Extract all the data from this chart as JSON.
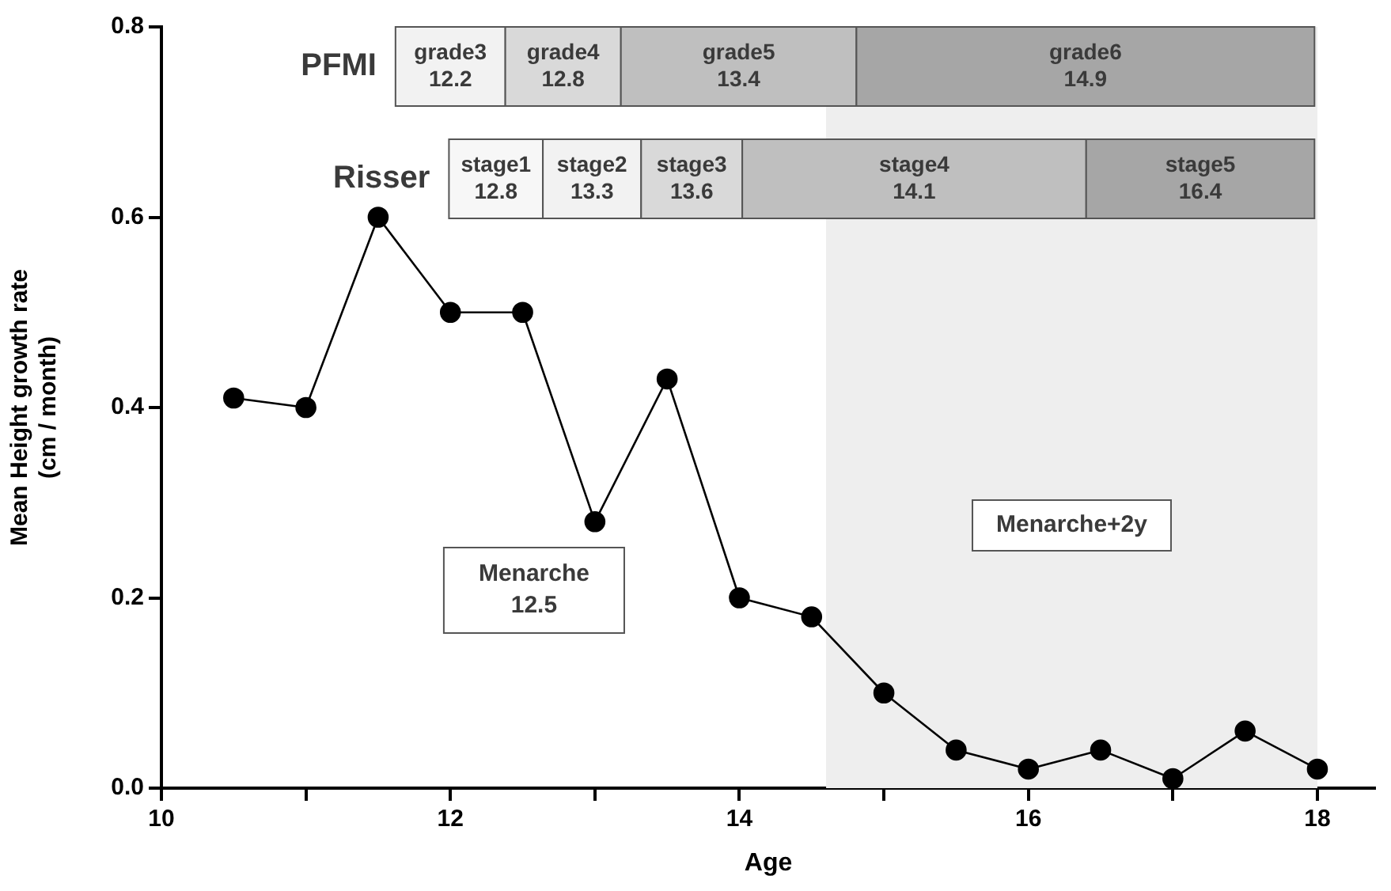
{
  "chart_data": {
    "type": "line",
    "xlabel": "Age",
    "ylabel": "Mean Height growth rate\n(cm / month)",
    "x": [
      10.5,
      11,
      11.5,
      12,
      12.5,
      13,
      13.5,
      14,
      14.5,
      15,
      15.5,
      16,
      16.5,
      17,
      17.5,
      18
    ],
    "series": [
      {
        "color": "#000000",
        "values": [
          0.41,
          0.4,
          0.6,
          0.5,
          0.5,
          0.28,
          0.43,
          0.2,
          0.18,
          0.1,
          0.04,
          0.02,
          0.04,
          0.01,
          0.06,
          0.02
        ]
      }
    ],
    "xlim": [
      10,
      18.4
    ],
    "ylim": [
      0,
      0.8
    ],
    "xticks": [
      10,
      {
        "value": 11,
        "label": null
      },
      12,
      {
        "value": 13,
        "label": null
      },
      14,
      {
        "value": 15,
        "label": null
      },
      16,
      {
        "value": 17,
        "label": null
      },
      18
    ],
    "yticks": [
      {
        "value": 0,
        "label": "0.0"
      },
      {
        "value": 0.2,
        "label": "0.2"
      },
      {
        "value": 0.4,
        "label": "0.4"
      },
      {
        "value": 0.6,
        "label": "0.6"
      },
      {
        "value": 0.8,
        "label": "0.8"
      }
    ],
    "grid": false,
    "legend": false,
    "marker": "circle",
    "line_style": "solid",
    "bands": [
      {
        "axis": "x",
        "from": 14.6,
        "to": 18,
        "label": "Menarche+2y",
        "color": "#eeeeee"
      },
      {
        "axis": "x",
        "from": 11.62,
        "to": 12.38,
        "label": "grade3\n12.2",
        "color": "#f2f2f2"
      },
      {
        "axis": "x",
        "from": 12.38,
        "to": 13.18,
        "label": "grade4\n12.8",
        "color": "#d9d9d9"
      },
      {
        "axis": "x",
        "from": 13.18,
        "to": 14.81,
        "label": "grade5\n13.4",
        "color": "#bfbfbf"
      },
      {
        "axis": "x",
        "from": 14.81,
        "to": 17.98,
        "label": "grade6\n14.9",
        "color": "#a6a6a6"
      },
      {
        "axis": "x",
        "from": 11.99,
        "to": 12.64,
        "label": "stage1\n12.8",
        "color": "#f7f7f7"
      },
      {
        "axis": "x",
        "from": 12.64,
        "to": 13.32,
        "label": "stage2\n13.3",
        "color": "#f2f2f2"
      },
      {
        "axis": "x",
        "from": 13.32,
        "to": 14.02,
        "label": "stage3\n13.6",
        "color": "#d9d9d9"
      },
      {
        "axis": "x",
        "from": 14.02,
        "to": 16.4,
        "label": "stage4\n14.1",
        "color": "#bfbfbf"
      },
      {
        "axis": "x",
        "from": 16.4,
        "to": 17.98,
        "label": "stage5\n16.4",
        "color": "#a6a6a6"
      }
    ],
    "annotations": [
      "PFMI",
      "Risser",
      "Menarche\n12.5"
    ]
  }
}
